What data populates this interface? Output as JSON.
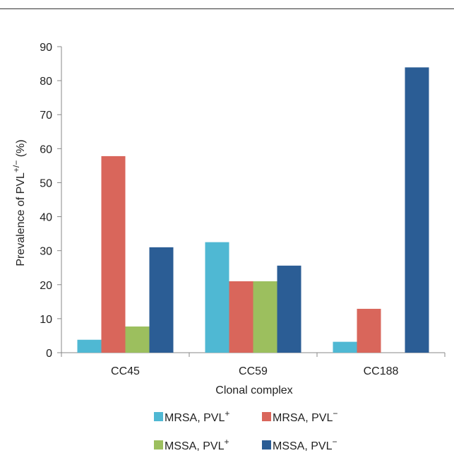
{
  "chart_data": {
    "type": "bar",
    "title": "",
    "xlabel": "Clonal complex",
    "ylabel": {
      "main": "Prevalence of PVL",
      "sup": "+/−",
      "suffix": " (%)"
    },
    "ylim": [
      0,
      90
    ],
    "yticks": [
      0,
      10,
      20,
      30,
      40,
      50,
      60,
      70,
      80,
      90
    ],
    "grid": false,
    "legend_position": "bottom",
    "categories": [
      "CC45",
      "CC59",
      "CC188"
    ],
    "series": [
      {
        "name": "MRSA, PVL",
        "sup": "+",
        "color": "#4fb8d3",
        "values": [
          3.8,
          32.5,
          3.2
        ]
      },
      {
        "name": "MRSA, PVL",
        "sup": "−",
        "color": "#d9665b",
        "values": [
          57.8,
          21,
          12.9
        ]
      },
      {
        "name": "MSSA, PVL",
        "sup": "+",
        "color": "#9cbf5e",
        "values": [
          7.7,
          21,
          0
        ]
      },
      {
        "name": "MSSA, PVL",
        "sup": "−",
        "color": "#2b5d95",
        "values": [
          31,
          25.6,
          83.9
        ]
      }
    ]
  }
}
